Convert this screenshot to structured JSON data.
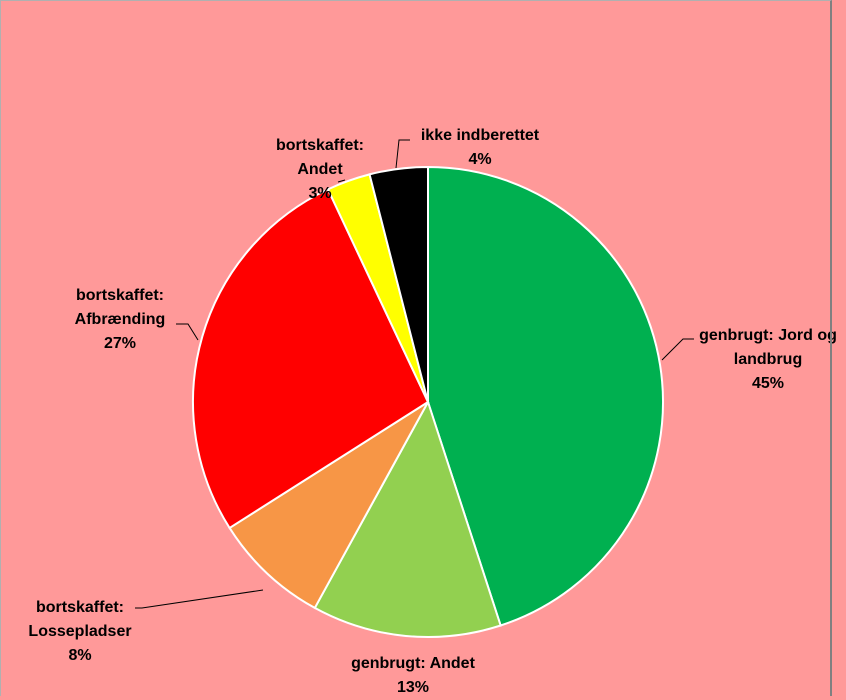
{
  "chart_data": {
    "type": "pie",
    "title": "",
    "start_angle_deg": 0,
    "direction": "clockwise",
    "background_color": "#ff9999",
    "slices": [
      {
        "category": "genbrugt: Jord og landbrug",
        "value": 45,
        "value_label": "45%",
        "color": "#00b050",
        "label_lines": [
          "genbrugt: Jord og",
          "landbrug",
          "45%"
        ]
      },
      {
        "category": "genbrugt: Andet",
        "value": 13,
        "value_label": "13%",
        "color": "#92d050",
        "label_lines": [
          "genbrugt: Andet",
          "13%"
        ]
      },
      {
        "category": "bortskaffet: Lossepladser",
        "value": 8,
        "value_label": "8%",
        "color": "#f79646",
        "label_lines": [
          "bortskaffet:",
          "Lossepladser",
          "8%"
        ]
      },
      {
        "category": "bortskaffet: Afbrænding",
        "value": 27,
        "value_label": "27%",
        "color": "#ff0000",
        "label_lines": [
          "bortskaffet:",
          "Afbrænding",
          "27%"
        ]
      },
      {
        "category": "bortskaffet: Andet",
        "value": 3,
        "value_label": "3%",
        "color": "#ffff00",
        "label_lines": [
          "bortskaffet:",
          "Andet",
          "3%"
        ]
      },
      {
        "category": "ikke indberettet",
        "value": 4,
        "value_label": "4%",
        "color": "#000000",
        "label_lines": [
          "ikke indberettet",
          "4%"
        ]
      }
    ]
  }
}
